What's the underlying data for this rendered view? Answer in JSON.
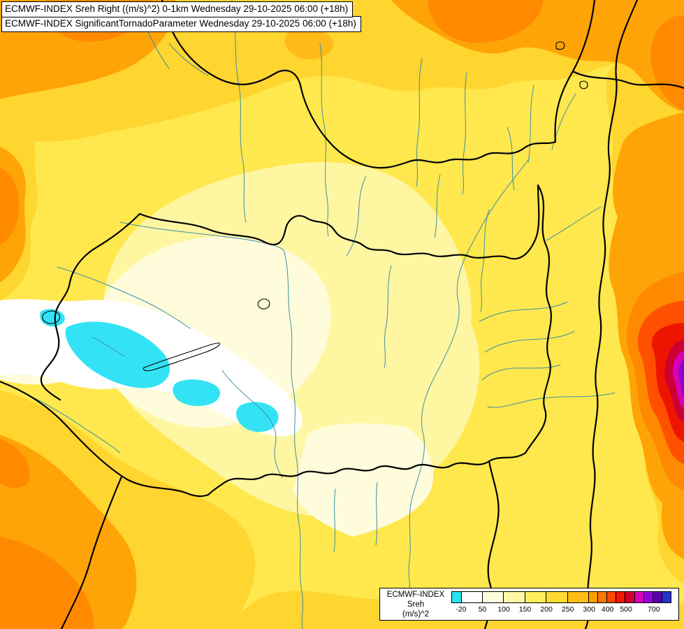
{
  "header": {
    "title_line1": "ECMWF-INDEX Sreh Right ((m/s)^2) 0-1km Wednesday 29-10-2025 06:00 (+18h)",
    "title_line2": "ECMWF-INDEX SignificantTornadoParameter Wednesday 29-10-2025 06:00 (+18h)"
  },
  "legend": {
    "product": "ECMWF-INDEX",
    "parameter": "Sreh",
    "units": "(m/s)^2",
    "colorbar": {
      "segments": [
        {
          "color": "#2BE0F2",
          "w": 4.4
        },
        {
          "color": "#FFFFFF",
          "w": 9.7
        },
        {
          "color": "#FFFDDE",
          "w": 9.7
        },
        {
          "color": "#FFF7A8",
          "w": 9.7
        },
        {
          "color": "#FFEE5A",
          "w": 9.7
        },
        {
          "color": "#FFDB32",
          "w": 9.7
        },
        {
          "color": "#FFBD16",
          "w": 9.7
        },
        {
          "color": "#FF9C00",
          "w": 4.2
        },
        {
          "color": "#FF7800",
          "w": 4.2
        },
        {
          "color": "#FF4800",
          "w": 4.2
        },
        {
          "color": "#F01800",
          "w": 4.2
        },
        {
          "color": "#CE0030",
          "w": 4.2
        },
        {
          "color": "#DC00BE",
          "w": 4.2
        },
        {
          "color": "#9600DC",
          "w": 4.2
        },
        {
          "color": "#5A00AA",
          "w": 4.2
        },
        {
          "color": "#2832C8",
          "w": 3.8
        }
      ],
      "ticks": [
        {
          "label": "-20",
          "pos": 4.4
        },
        {
          "label": "50",
          "pos": 14.1
        },
        {
          "label": "100",
          "pos": 23.8
        },
        {
          "label": "150",
          "pos": 33.5
        },
        {
          "label": "200",
          "pos": 43.2
        },
        {
          "label": "250",
          "pos": 52.9
        },
        {
          "label": "300",
          "pos": 62.6
        },
        {
          "label": "400",
          "pos": 71.0
        },
        {
          "label": "500",
          "pos": 79.4
        },
        {
          "label": "700",
          "pos": 92.0
        }
      ]
    }
  },
  "map": {
    "palette": {
      "base_yellow": "#FFE84D",
      "pale_yellow": "#FFF6A2",
      "cream": "#FFFCDC",
      "white": "#FFFFFF",
      "cyan": "#33E3F5",
      "gold": "#FFD530",
      "amber": "#FFBB17",
      "orange": "#FFA406",
      "dark_orange": "#FF8A00",
      "red_orange": "#FF5000",
      "red": "#EE1500",
      "crimson": "#CC0033",
      "magenta": "#D800B9",
      "purple": "#8800CC",
      "border": "#000000",
      "river": "#3E8FA4"
    }
  }
}
